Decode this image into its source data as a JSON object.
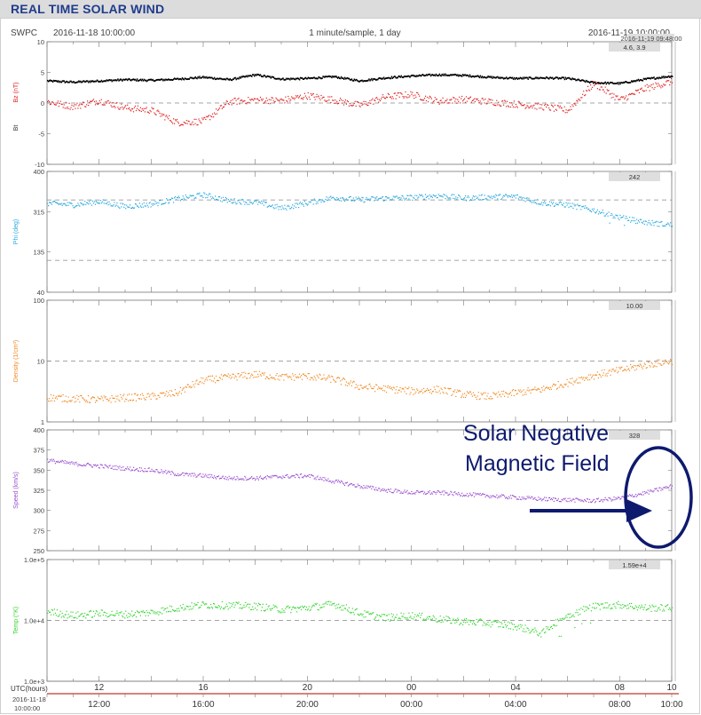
{
  "page": {
    "banner_title": "REAL TIME SOLAR WIND",
    "org": "SWPC",
    "start_time": "2016-11-18 10:00:00",
    "sampling": "1 minute/sample, 1 day",
    "end_time": "2016-11-19 10:00:00",
    "stamp": "2016-11-19 09:48:00"
  },
  "annotation": {
    "text_line1": "Solar Negative",
    "text_line2": "Magnetic Field",
    "color": "#0d1a6e"
  },
  "colors": {
    "bt": "#000000",
    "bz": "#e02020",
    "phi": "#29a8e0",
    "density": "#f08a24",
    "speed": "#9b4fd0",
    "temp": "#34d52e",
    "axis_red": "#c0392b",
    "panel_border": "#777777",
    "dashed": "#888888"
  },
  "chart_data": [
    {
      "type": "line",
      "panel": "magnetic_field",
      "ylabels": [
        "Bz (nT)",
        "Bt"
      ],
      "ylim": [
        -10,
        10
      ],
      "ytick_labels": [
        "10",
        "5",
        "0",
        "-5",
        "-10"
      ],
      "current_value": "4.6, 3.9",
      "x_hours": [
        0,
        1,
        2,
        3,
        4,
        5,
        6,
        7,
        8,
        9,
        10,
        11,
        12,
        13,
        14,
        15,
        16,
        17,
        18,
        19,
        20,
        21,
        22,
        23,
        24
      ],
      "series": [
        {
          "key": "bt",
          "values": [
            3.6,
            3.4,
            3.6,
            3.8,
            3.7,
            3.9,
            4.2,
            3.8,
            4.6,
            3.9,
            4.0,
            4.3,
            3.6,
            4.1,
            4.4,
            4.6,
            4.5,
            4.2,
            4.0,
            4.1,
            4.0,
            3.3,
            3.2,
            3.9,
            4.4
          ]
        },
        {
          "key": "bz",
          "values": [
            0.2,
            -0.6,
            0.4,
            -0.8,
            -1.2,
            -3.2,
            -3.0,
            0.2,
            0.5,
            0.4,
            1.2,
            0.5,
            -0.4,
            1.0,
            1.4,
            0.3,
            0.6,
            0.2,
            -0.2,
            -0.6,
            -1.2,
            3.2,
            0.5,
            2.4,
            3.5
          ]
        }
      ]
    },
    {
      "type": "scatter",
      "panel": "phi",
      "ylabel": "Phi (deg)",
      "ylim": [
        40,
        400
      ],
      "ytick_labels": [
        "400",
        "315",
        "135",
        "40"
      ],
      "reference_lines": [
        315,
        135
      ],
      "current_value": "242",
      "x_hours": [
        0,
        1,
        2,
        3,
        4,
        5,
        6,
        7,
        8,
        9,
        10,
        11,
        12,
        13,
        14,
        15,
        16,
        17,
        18,
        19,
        20,
        21,
        22,
        23,
        24
      ],
      "series": [
        {
          "key": "phi",
          "values": [
            305,
            300,
            310,
            295,
            302,
            318,
            330,
            312,
            308,
            290,
            306,
            322,
            315,
            320,
            322,
            328,
            320,
            324,
            325,
            306,
            300,
            284,
            262,
            248,
            240
          ]
        }
      ]
    },
    {
      "type": "scatter",
      "panel": "density",
      "ylabel": "Density (1/cm³)",
      "ylim": [
        1,
        100
      ],
      "log_scale": true,
      "ytick_labels": [
        "100",
        "10",
        "1"
      ],
      "reference_lines": [
        10
      ],
      "current_value": "10.00",
      "x_hours": [
        0,
        1,
        2,
        3,
        4,
        5,
        6,
        7,
        8,
        9,
        10,
        11,
        12,
        13,
        14,
        15,
        16,
        17,
        18,
        19,
        20,
        21,
        22,
        23,
        24
      ],
      "series": [
        {
          "key": "density",
          "values": [
            2.5,
            2.4,
            2.3,
            2.5,
            2.6,
            3.0,
            4.8,
            5.4,
            6.0,
            5.4,
            5.6,
            5.0,
            3.8,
            3.5,
            3.2,
            3.4,
            2.8,
            2.6,
            3.0,
            3.4,
            4.4,
            5.8,
            7.0,
            8.6,
            10.0
          ]
        }
      ]
    },
    {
      "type": "scatter",
      "panel": "speed",
      "ylabel": "Speed (km/s)",
      "ylim": [
        250,
        400
      ],
      "ytick_labels": [
        "400",
        "375",
        "350",
        "325",
        "300",
        "275",
        "250"
      ],
      "current_value": "328",
      "x_hours": [
        0,
        1,
        2,
        3,
        4,
        5,
        6,
        7,
        8,
        9,
        10,
        11,
        12,
        13,
        14,
        15,
        16,
        17,
        18,
        19,
        20,
        21,
        22,
        23,
        24
      ],
      "series": [
        {
          "key": "speed",
          "values": [
            362,
            358,
            355,
            352,
            350,
            345,
            343,
            340,
            340,
            342,
            343,
            336,
            330,
            325,
            322,
            322,
            320,
            318,
            316,
            314,
            313,
            312,
            315,
            322,
            330
          ]
        }
      ]
    },
    {
      "type": "scatter",
      "panel": "temperature",
      "ylabel": "Temp (°K)",
      "ylim": [
        1000,
        100000
      ],
      "log_scale": true,
      "ytick_labels": [
        "1.0e+5",
        "1.0e+4",
        "1.0e+3"
      ],
      "reference_lines": [
        10000
      ],
      "current_value": "1.59e+4",
      "x_hours": [
        0,
        1,
        2,
        3,
        4,
        5,
        6,
        7,
        8,
        9,
        10,
        11,
        12,
        13,
        14,
        15,
        16,
        17,
        18,
        19,
        20,
        21,
        22,
        23,
        24
      ],
      "series": [
        {
          "key": "temp",
          "values": [
            14000,
            12000,
            13000,
            12500,
            13500,
            16000,
            18000,
            17500,
            17000,
            15000,
            16000,
            18500,
            13000,
            11000,
            12000,
            10500,
            9500,
            9000,
            8000,
            6000,
            12000,
            17000,
            18000,
            16000,
            15900
          ]
        }
      ]
    },
    {
      "type": "table",
      "panel": "time_axis",
      "xlabel": "UTC(hours)",
      "top_tick_labels": [
        "12",
        "16",
        "20",
        "00",
        "04",
        "08",
        "10"
      ],
      "bottom_tick_labels": [
        "12:00",
        "16:00",
        "20:00",
        "00:00",
        "04:00",
        "08:00",
        "10:00"
      ],
      "start_date": "2016-11-18",
      "start_clock": "10:00:00"
    }
  ]
}
